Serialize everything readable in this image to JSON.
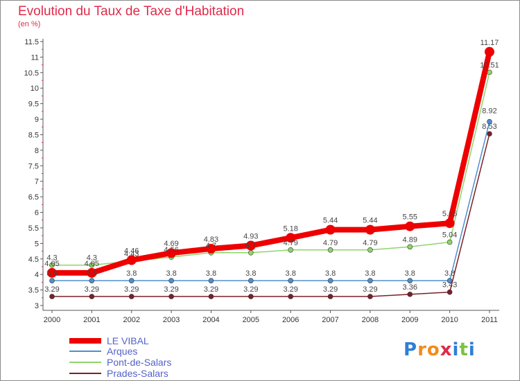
{
  "title": "Evolution du Taux de Taxe d'Habitation",
  "subtitle": "(en %)",
  "logo": {
    "text": "Proxiti",
    "colors": [
      "#2e7fd6",
      "#f28c1d",
      "#f28c1d",
      "#e02a4a",
      "#2e7fd6",
      "#7cc242",
      "#2e7fd6"
    ]
  },
  "chart_data": {
    "type": "line",
    "title": "Evolution du Taux de Taxe d'Habitation",
    "subtitle": "(en %)",
    "xlabel": "",
    "ylabel": "",
    "x": [
      "2000",
      "2001",
      "2002",
      "2003",
      "2004",
      "2005",
      "2006",
      "2007",
      "2008",
      "2009",
      "2010",
      "2011"
    ],
    "ylim": [
      3,
      11.5
    ],
    "yticks": [
      "3",
      "3.5",
      "4",
      "4.5",
      "5",
      "5.5",
      "6",
      "6.5",
      "7",
      "7.5",
      "8",
      "8.5",
      "9",
      "9.5",
      "10",
      "10.5",
      "11",
      "11.5"
    ],
    "grid": false,
    "legend_position": "bottom-left",
    "series": [
      {
        "name": "LE VIBAL",
        "color": "#ee0000",
        "values": [
          4.05,
          4.05,
          4.46,
          4.69,
          4.83,
          4.93,
          5.18,
          5.44,
          5.44,
          5.55,
          5.65,
          11.17
        ],
        "labels": [
          "4.05",
          "4.05",
          "4.46",
          "4.69",
          "4.83",
          "4.93",
          "5.18",
          "5.44",
          "5.44",
          "5.55",
          "5.65",
          "11.17"
        ]
      },
      {
        "name": "Arques",
        "color": "#4f8fcd",
        "values": [
          3.8,
          3.8,
          3.8,
          3.8,
          3.8,
          3.8,
          3.8,
          3.8,
          3.8,
          3.8,
          3.8,
          8.92
        ],
        "labels": [
          "3.8",
          "3.8",
          "3.8",
          "3.8",
          "3.8",
          "3.8",
          "3.8",
          "3.8",
          "3.8",
          "3.8",
          "3.8",
          "8.92"
        ]
      },
      {
        "name": "Pont-de-Salars",
        "color": "#8fd46a",
        "values": [
          4.3,
          4.3,
          4.43,
          4.56,
          4.7,
          4.7,
          4.79,
          4.79,
          4.79,
          4.89,
          5.04,
          10.51
        ],
        "labels": [
          "4.3",
          "4.3",
          "4.43",
          "4.56",
          "4.7",
          "4.7",
          "4.79",
          "4.79",
          "4.79",
          "4.89",
          "5.04",
          "10.51"
        ]
      },
      {
        "name": "Prades-Salars",
        "color": "#7a1f2a",
        "values": [
          3.29,
          3.29,
          3.29,
          3.29,
          3.29,
          3.29,
          3.29,
          3.29,
          3.29,
          3.36,
          3.43,
          8.53
        ],
        "labels": [
          "3.29",
          "3.29",
          "3.29",
          "3.29",
          "3.29",
          "3.29",
          "3.29",
          "3.29",
          "3.29",
          "3.36",
          "3.43",
          "8.53"
        ]
      }
    ]
  }
}
